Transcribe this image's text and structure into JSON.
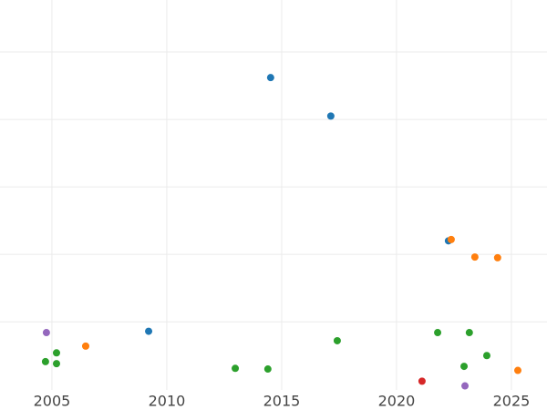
{
  "chart_data": {
    "type": "scatter",
    "xlim": [
      2002.74,
      2026.55
    ],
    "xticks": [
      2005,
      2010,
      2015,
      2020,
      2025
    ],
    "ylim": [
      -0.01,
      5.77
    ],
    "yticks": [
      1,
      2,
      3,
      4,
      5
    ],
    "ytick_labels": false,
    "grid": true,
    "series": [
      {
        "color": "#1f77b4",
        "x": [
          2014.52,
          2017.14,
          2009.21,
          2022.26
        ],
        "values": [
          4.62,
          4.05,
          0.86,
          2.2
        ]
      },
      {
        "color": "#ff7f0e",
        "x": [
          2022.38,
          2023.41,
          2024.4,
          2006.47,
          2025.28
        ],
        "values": [
          2.22,
          1.96,
          1.95,
          0.64,
          0.28
        ]
      },
      {
        "color": "#2ca02c",
        "x": [
          2005.2,
          2004.72,
          2005.2,
          2012.98,
          2014.4,
          2017.42,
          2021.79,
          2023.17,
          2023.93,
          2022.94
        ],
        "values": [
          0.54,
          0.41,
          0.38,
          0.31,
          0.3,
          0.72,
          0.84,
          0.84,
          0.5,
          0.34
        ]
      },
      {
        "color": "#d62728",
        "x": [
          2021.11
        ],
        "values": [
          0.12
        ]
      },
      {
        "color": "#9467bd",
        "x": [
          2004.76,
          2022.98
        ],
        "values": [
          0.84,
          0.05
        ]
      }
    ]
  }
}
